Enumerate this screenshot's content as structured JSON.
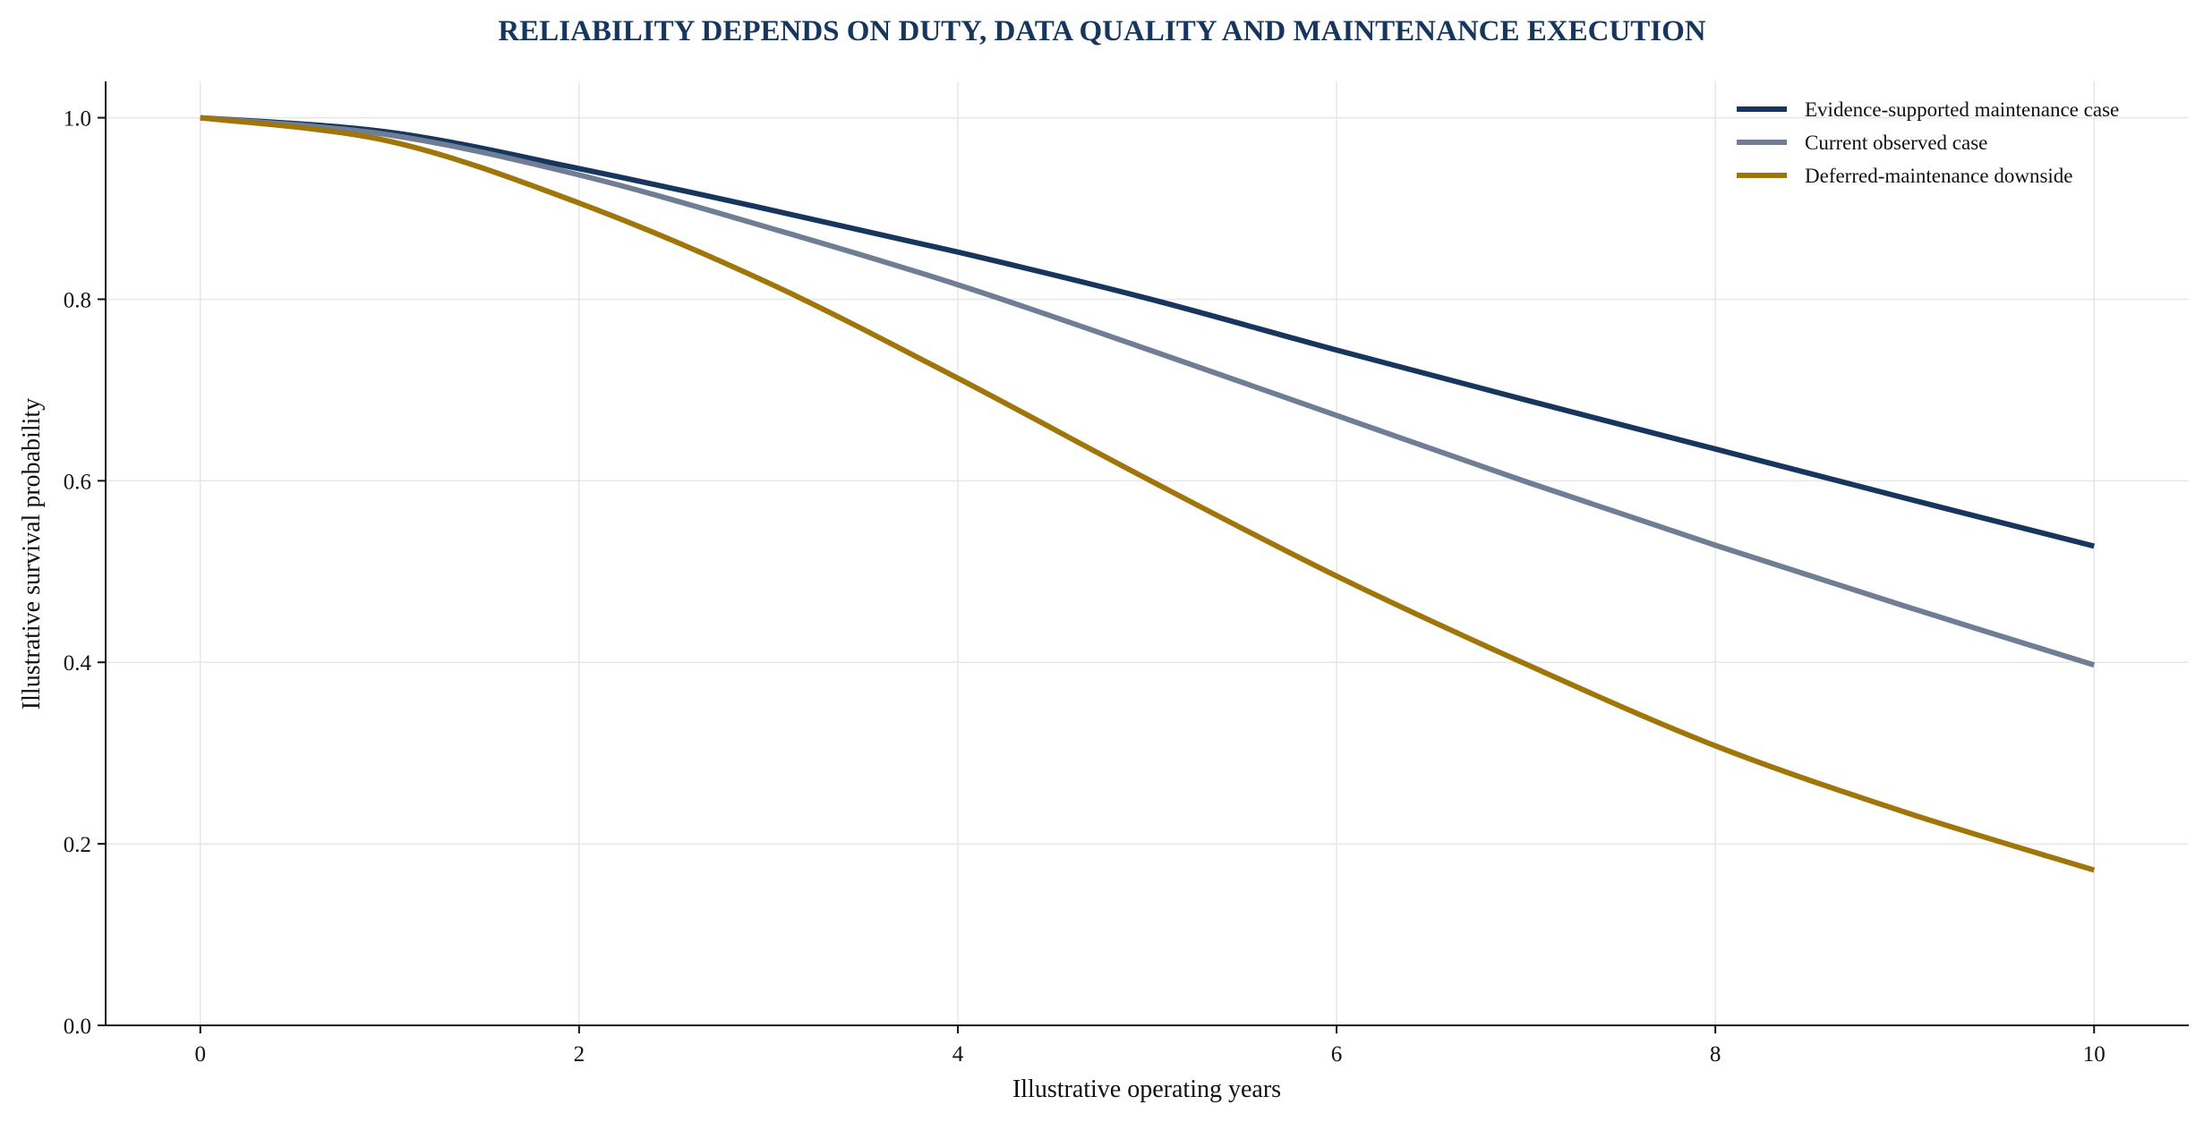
{
  "chart_data": {
    "type": "line",
    "title": "RELIABILITY DEPENDS ON DUTY, DATA QUALITY AND MAINTENANCE EXECUTION",
    "xlabel": "Illustrative operating years",
    "ylabel": "Illustrative survival probability",
    "xlim": [
      -0.5,
      10.5
    ],
    "ylim": [
      0.0,
      1.04
    ],
    "x_ticks": [
      0,
      2,
      4,
      6,
      8,
      10
    ],
    "x_tick_labels": [
      "0",
      "2",
      "4",
      "6",
      "8",
      "10"
    ],
    "y_ticks": [
      0.0,
      0.2,
      0.4,
      0.6,
      0.8,
      1.0
    ],
    "y_tick_labels": [
      "0.0",
      "0.2",
      "0.4",
      "0.6",
      "0.8",
      "1.0"
    ],
    "grid": true,
    "legend_position": "top-right",
    "x": [
      0,
      1,
      2,
      3,
      4,
      5,
      6,
      7,
      8,
      9,
      10
    ],
    "series": [
      {
        "name": "Evidence-supported maintenance case",
        "color": "#17365d",
        "values": [
          1.0,
          0.984,
          0.944,
          0.899,
          0.852,
          0.801,
          0.744,
          0.689,
          0.635,
          0.581,
          0.528
        ]
      },
      {
        "name": "Current observed case",
        "color": "#6f7d95",
        "values": [
          1.0,
          0.981,
          0.937,
          0.879,
          0.816,
          0.745,
          0.672,
          0.599,
          0.529,
          0.462,
          0.397
        ]
      },
      {
        "name": "Deferred-maintenance downside",
        "color": "#a0760a",
        "values": [
          1.0,
          0.974,
          0.906,
          0.818,
          0.713,
          0.602,
          0.495,
          0.398,
          0.308,
          0.235,
          0.171
        ]
      }
    ]
  }
}
